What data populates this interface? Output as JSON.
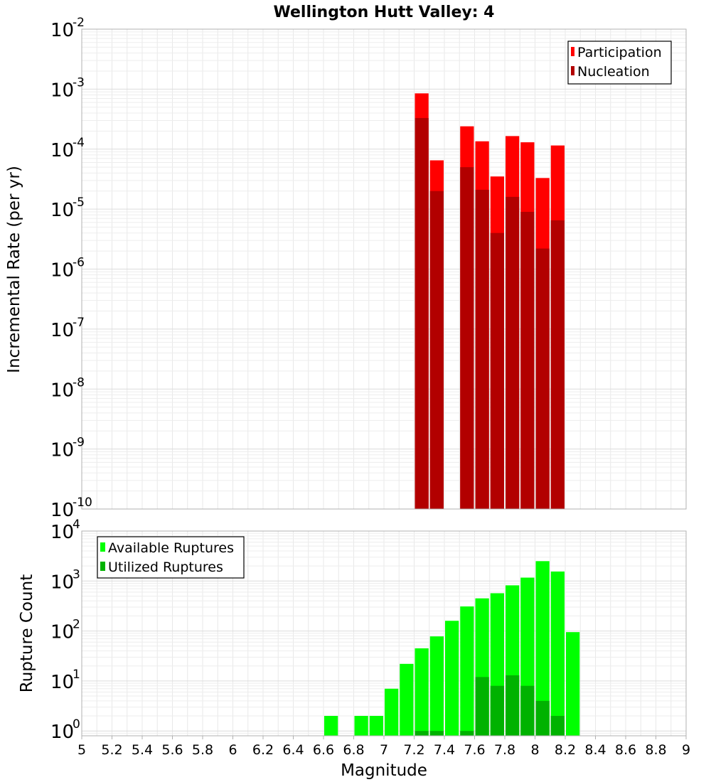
{
  "chart_data": [
    {
      "type": "bar",
      "title": "Wellington Hutt Valley: 4",
      "xlabel": "",
      "ylabel": "Incremental Rate (per yr)",
      "yscale": "log",
      "ylim": [
        1e-10,
        0.01
      ],
      "ytick_exponents": [
        "-10",
        "-9",
        "-8",
        "-7",
        "-6",
        "-5",
        "-4",
        "-3",
        "-2"
      ],
      "xlim": [
        5,
        9
      ],
      "bin_width": 0.1,
      "grid": true,
      "legend_position": "top-right",
      "x": [
        7.25,
        7.35,
        7.55,
        7.65,
        7.75,
        7.85,
        7.95,
        8.05,
        8.15
      ],
      "series": [
        {
          "name": "Participation",
          "color": "#ff0000",
          "values": [
            0.00085,
            6.5e-05,
            0.00024,
            0.000135,
            3.5e-05,
            0.000165,
            0.00013,
            3.3e-05,
            0.000115
          ]
        },
        {
          "name": "Nucleation",
          "color": "#b20000",
          "values": [
            0.00033,
            2e-05,
            5e-05,
            2.1e-05,
            4e-06,
            1.6e-05,
            9e-06,
            2.2e-06,
            6.5e-06
          ]
        }
      ]
    },
    {
      "type": "bar",
      "title": "",
      "xlabel": "Magnitude",
      "ylabel": "Rupture Count",
      "yscale": "log",
      "ylim": [
        0.8,
        10000
      ],
      "ytick_exponents": [
        "0",
        "1",
        "2",
        "3",
        "4"
      ],
      "xlim": [
        5,
        9
      ],
      "xtick_labels": [
        "5",
        "5.2",
        "5.4",
        "5.6",
        "5.8",
        "6",
        "6.2",
        "6.4",
        "6.6",
        "6.8",
        "7",
        "7.2",
        "7.4",
        "7.6",
        "7.8",
        "8",
        "8.2",
        "8.4",
        "8.6",
        "8.8",
        "9"
      ],
      "bin_width": 0.1,
      "grid": true,
      "legend_position": "top-left",
      "x": [
        6.65,
        6.85,
        6.95,
        7.05,
        7.15,
        7.25,
        7.35,
        7.45,
        7.55,
        7.65,
        7.75,
        7.85,
        7.95,
        8.05,
        8.15,
        8.25
      ],
      "series": [
        {
          "name": "Available Ruptures",
          "color": "#00ff00",
          "values": [
            2,
            2,
            2,
            7,
            22,
            45,
            78,
            160,
            310,
            450,
            570,
            820,
            1170,
            2500,
            1550,
            95
          ]
        },
        {
          "name": "Utilized Ruptures",
          "color": "#00b200",
          "values": [
            null,
            null,
            null,
            null,
            null,
            1,
            1,
            null,
            1,
            12,
            8,
            13,
            8,
            4,
            2,
            null
          ]
        }
      ]
    }
  ]
}
